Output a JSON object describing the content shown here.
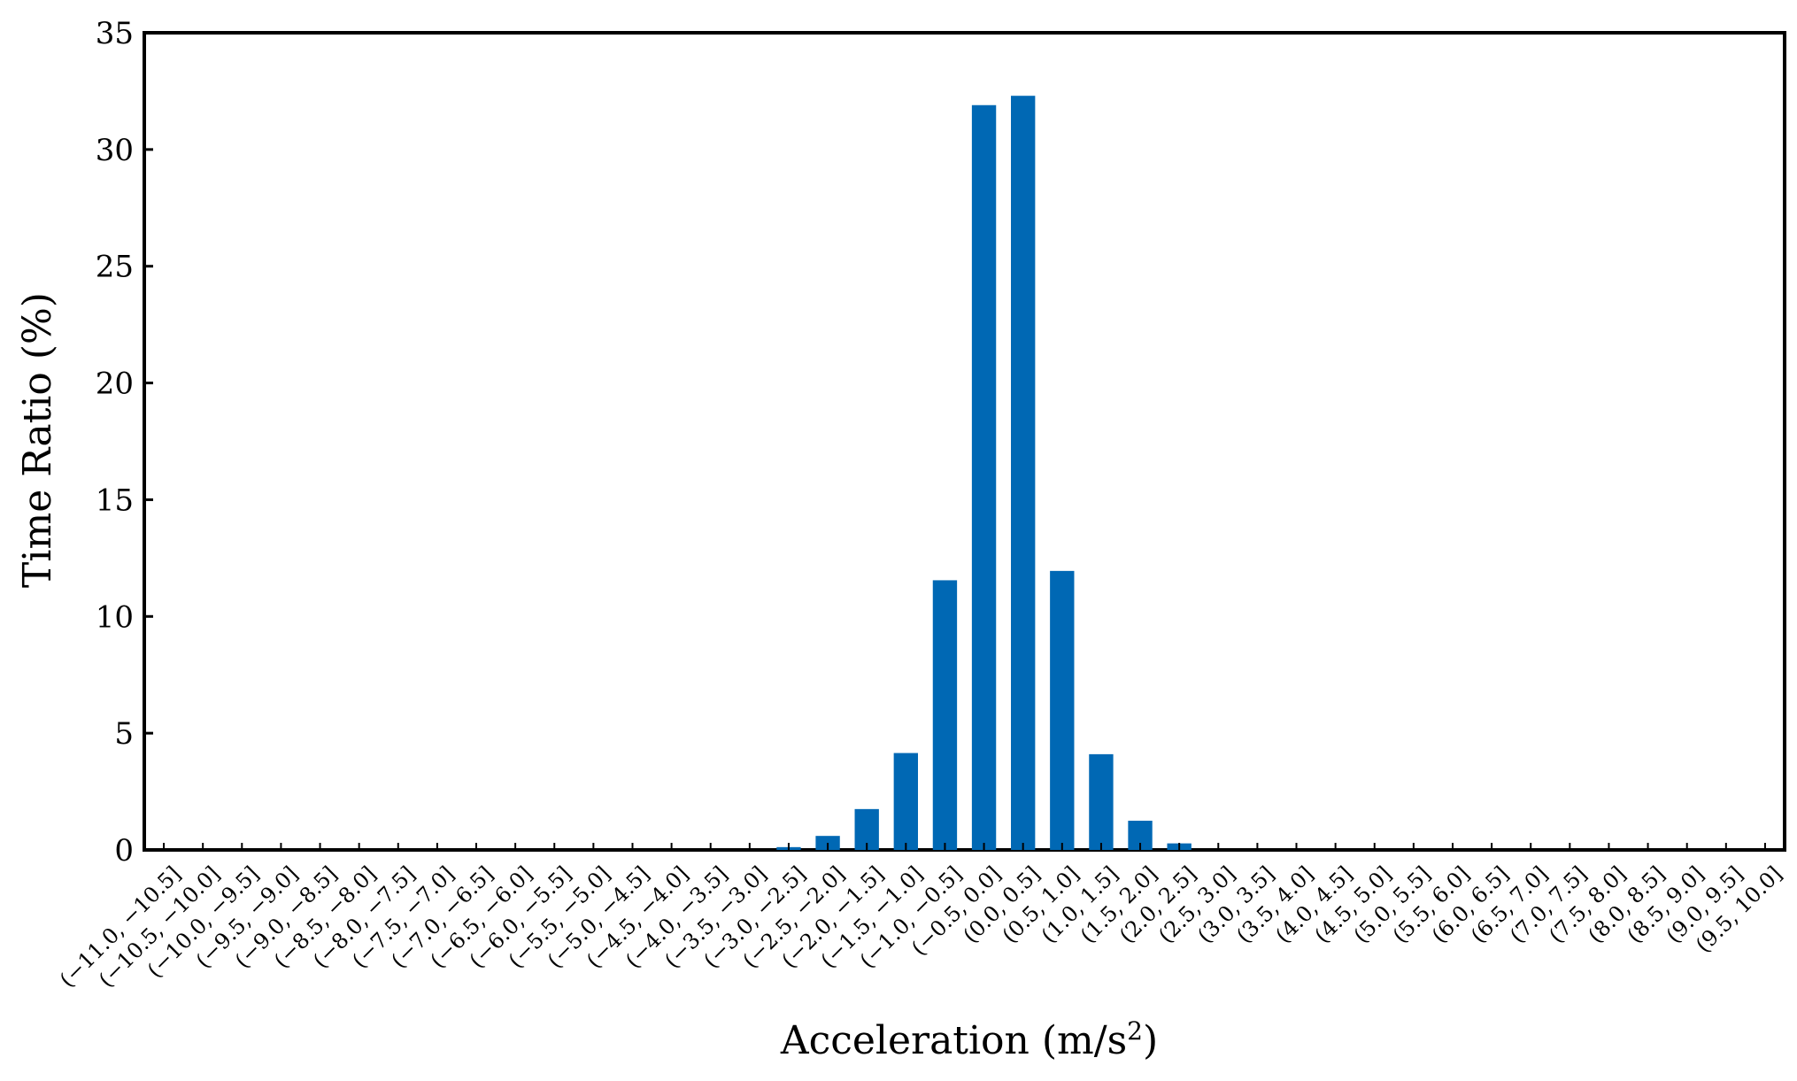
{
  "chart_data": {
    "type": "bar",
    "title": "",
    "xlabel": "Acceleration (m/s",
    "xlabel_superscript": "2",
    "xlabel_suffix": ")",
    "ylabel": "Time Ratio (%)",
    "ylim": [
      0,
      35
    ],
    "yticks": [
      "0",
      "5",
      "10",
      "15",
      "20",
      "25",
      "30",
      "35"
    ],
    "grid": false,
    "legend": "none",
    "bar_color": "#0068b4",
    "categories": [
      "(−11.0, −10.5]",
      "(−10.5, −10.0]",
      "(−10.0, −9.5]",
      "(−9.5, −9.0]",
      "(−9.0, −8.5]",
      "(−8.5, −8.0]",
      "(−8.0, −7.5]",
      "(−7.5, −7.0]",
      "(−7.0, −6.5]",
      "(−6.5, −6.0]",
      "(−6.0, −5.5]",
      "(−5.5, −5.0]",
      "(−5.0, −4.5]",
      "(−4.5, −4.0]",
      "(−4.0, −3.5]",
      "(−3.5, −3.0]",
      "(−3.0, −2.5]",
      "(−2.5, −2.0]",
      "(−2.0, −1.5]",
      "(−1.5, −1.0]",
      "(−1.0, −0.5]",
      "(−0.5, 0.0]",
      "(0.0, 0.5]",
      "(0.5, 1.0]",
      "(1.0, 1.5]",
      "(1.5, 2.0]",
      "(2.0, 2.5]",
      "(2.5, 3.0]",
      "(3.0, 3.5]",
      "(3.5, 4.0]",
      "(4.0, 4.5]",
      "(4.5, 5.0]",
      "(5.0, 5.5]",
      "(5.5, 6.0]",
      "(6.0, 6.5]",
      "(6.5, 7.0]",
      "(7.0, 7.5]",
      "(7.5, 8.0]",
      "(8.0, 8.5]",
      "(8.5, 9.0]",
      "(9.0, 9.5]",
      "(9.5, 10.0]"
    ],
    "values": [
      0,
      0,
      0,
      0,
      0,
      0,
      0,
      0,
      0,
      0,
      0,
      0,
      0,
      0,
      0,
      0,
      0.12,
      0.6,
      1.75,
      4.15,
      11.55,
      31.9,
      32.3,
      11.95,
      4.1,
      1.25,
      0.28,
      0,
      0,
      0,
      0,
      0,
      0,
      0,
      0,
      0,
      0,
      0,
      0,
      0,
      0,
      0
    ]
  }
}
